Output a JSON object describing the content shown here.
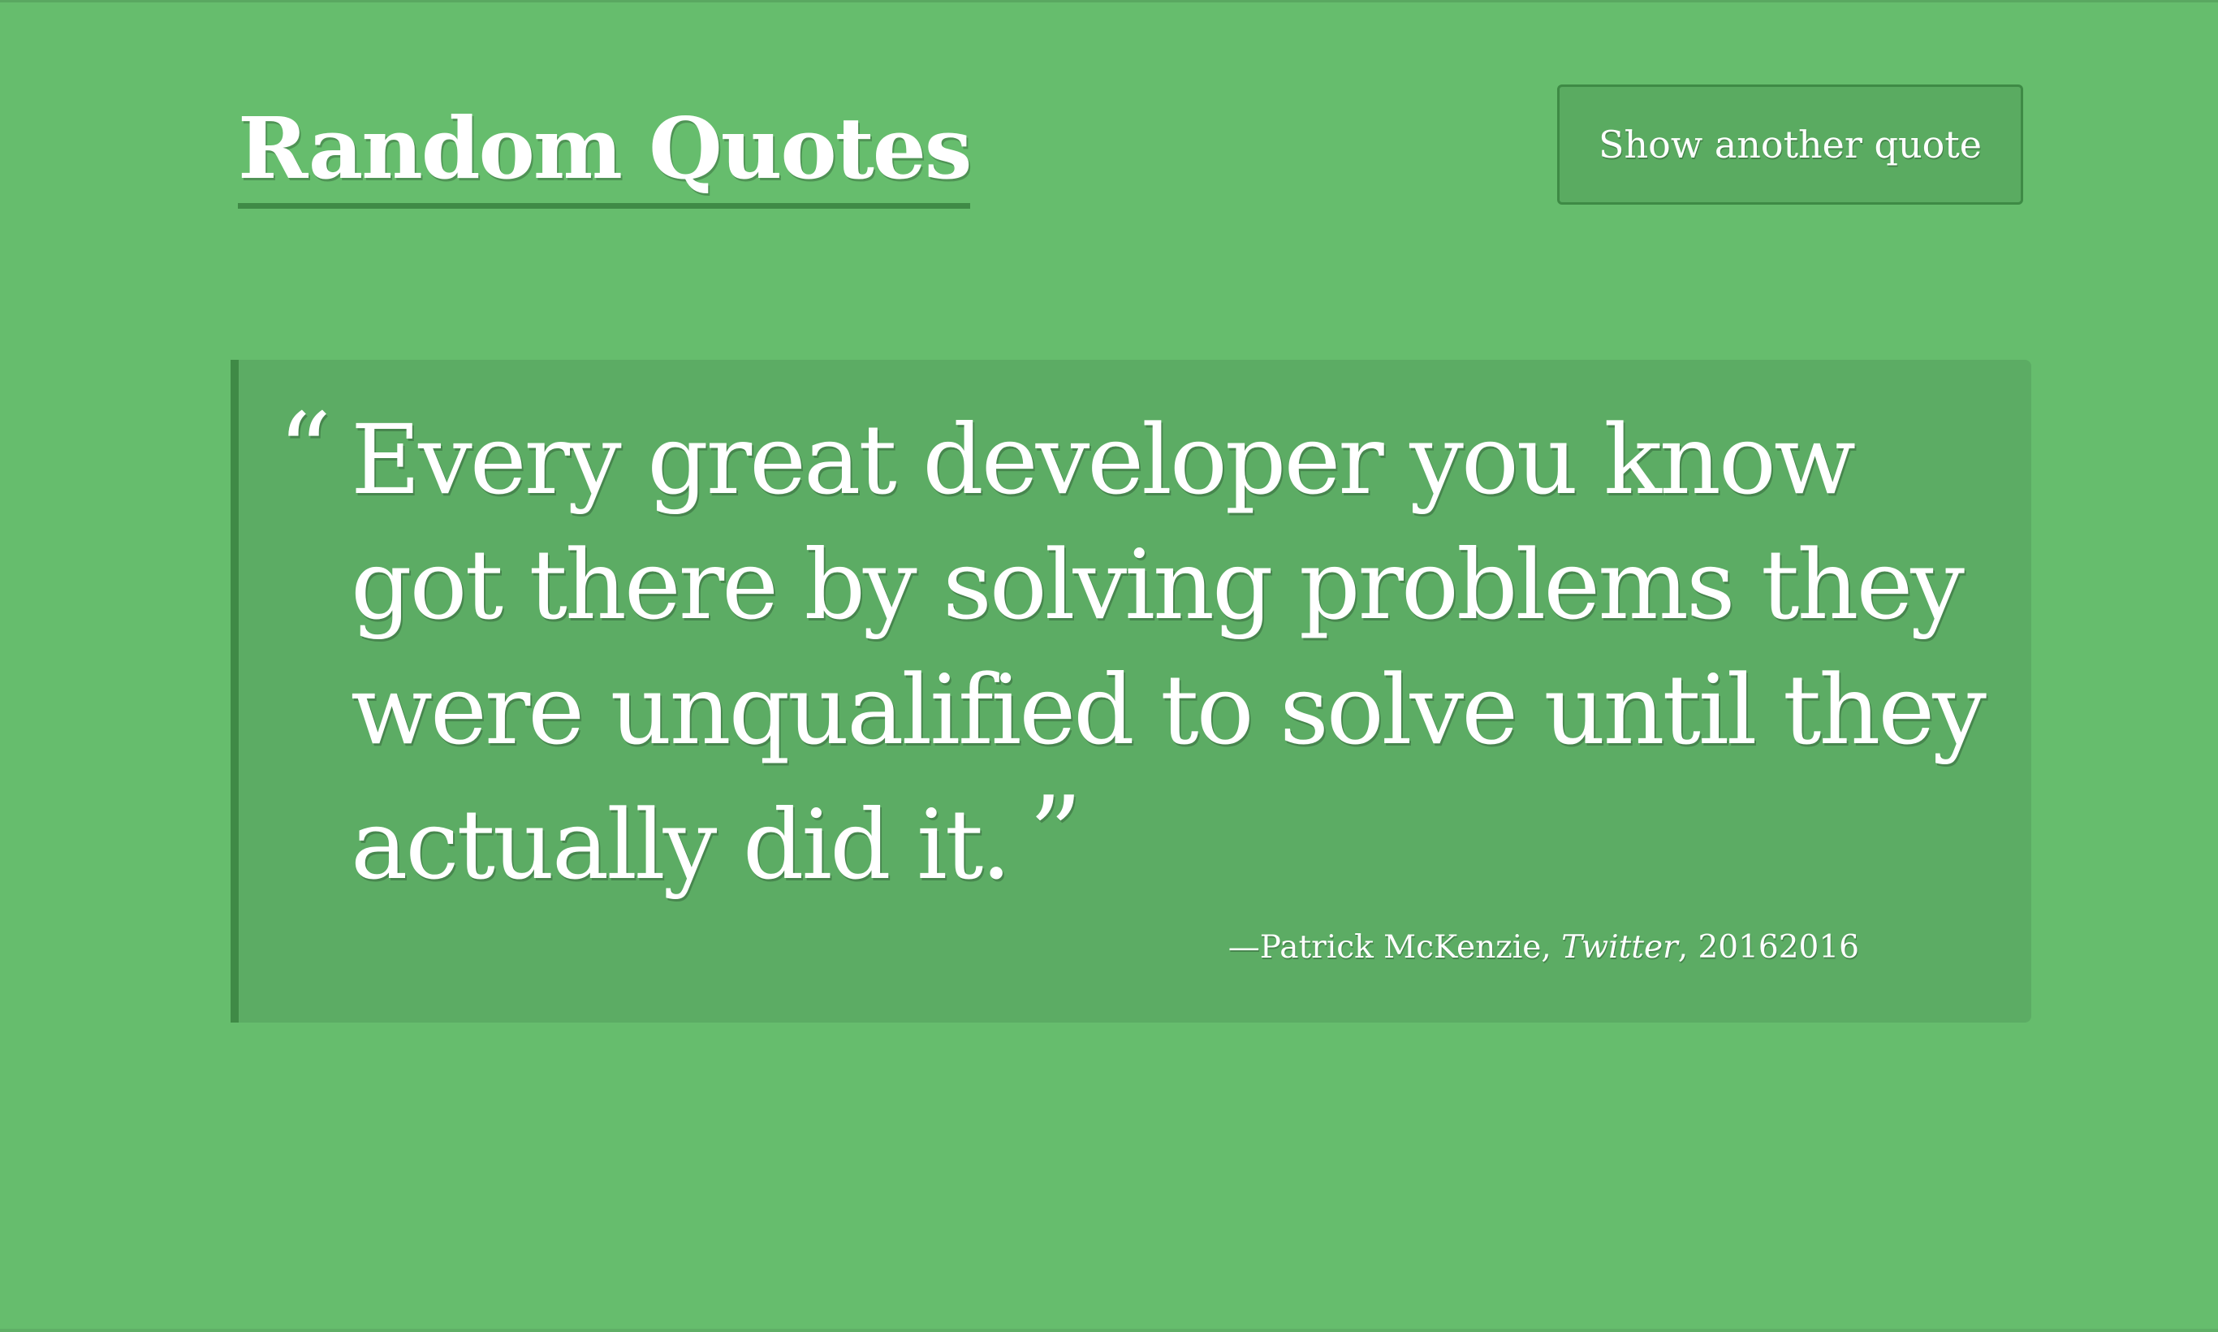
{
  "header": {
    "title": "Random Quotes",
    "button_label": "Show another quote"
  },
  "quote": {
    "open_mark": "“",
    "text": "Every great developer you know got there by solving problems they were unqualified to solve until they actually did it.",
    "close_mark": "”",
    "dash": "—",
    "author": "Patrick McKenzie",
    "source": "Twitter",
    "year": "20162016"
  },
  "colors": {
    "background": "#66bd6d",
    "quote_box": "#5cac64",
    "accent_border": "#3f8a46",
    "text": "#ffffff"
  }
}
